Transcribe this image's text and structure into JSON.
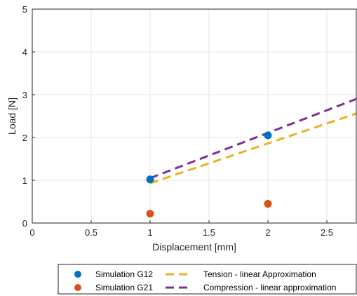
{
  "chart_data": {
    "type": "scatter",
    "xlabel": "Displacement [mm]",
    "ylabel": "Load [N]",
    "xlim": [
      0,
      2.75
    ],
    "ylim": [
      0,
      5
    ],
    "xticks": [
      0,
      0.5,
      1,
      1.5,
      2,
      2.5
    ],
    "yticks": [
      0,
      1,
      2,
      3,
      4,
      5
    ],
    "xtick_labels": [
      "0",
      "0.5",
      "1",
      "1.5",
      "2",
      "2.5"
    ],
    "ytick_labels": [
      "0",
      "1",
      "2",
      "3",
      "4",
      "5"
    ],
    "grid": true,
    "legend_position": "bottom-outside",
    "series": [
      {
        "name": "Simulation G12",
        "kind": "scatter",
        "color": "#0072BD",
        "x": [
          1,
          2
        ],
        "y": [
          1.02,
          2.05
        ]
      },
      {
        "name": "Simulation G21",
        "kind": "scatter",
        "color": "#D95319",
        "x": [
          1,
          2
        ],
        "y": [
          0.22,
          0.45
        ]
      },
      {
        "name": "Tension - linear Approximation",
        "kind": "dashed-line",
        "color": "#EDB120",
        "x": [
          1,
          2.75
        ],
        "y": [
          0.93,
          2.56
        ]
      },
      {
        "name": "Compression - linear approximation",
        "kind": "dashed-line",
        "color": "#7E2F8E",
        "x": [
          1,
          2.75
        ],
        "y": [
          1.05,
          2.9
        ]
      }
    ]
  }
}
